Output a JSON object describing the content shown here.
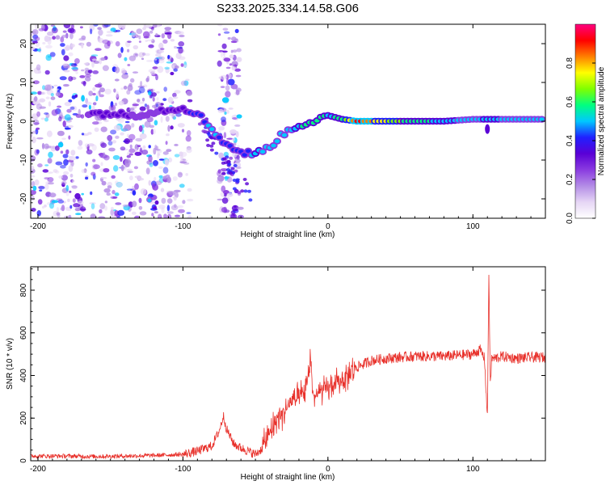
{
  "title": "S233.2025.334.14.58.G06",
  "chart_data": [
    {
      "type": "heatmap",
      "title": "S233.2025.334.14.58.G06",
      "xlabel": "Height of straight line (km)",
      "ylabel": "Frequency (Hz)",
      "xlim": [
        -205,
        150
      ],
      "ylim": [
        -25,
        25
      ],
      "xticks": [
        -200,
        -100,
        0,
        100
      ],
      "yticks": [
        -20,
        -10,
        0,
        10,
        20
      ],
      "colorbar": {
        "label": "Normalized spectral amplitude",
        "range": [
          0,
          1
        ],
        "ticks": [
          0.0,
          0.2,
          0.4,
          0.6,
          0.8
        ],
        "tick_labels": [
          "0.0",
          "0.2",
          "0.4",
          "0.6",
          "0.8"
        ],
        "colormap": [
          "#ffffff",
          "#e6d6f5",
          "#b38ce6",
          "#8a3be0",
          "#5a00d6",
          "#2020ff",
          "#00c8ff",
          "#00ff80",
          "#80ff00",
          "#ffff00",
          "#ff8000",
          "#ff0000",
          "#ff0080"
        ]
      },
      "ridge": [
        {
          "x": -165,
          "y": 2.0,
          "a": 0.3
        },
        {
          "x": -150,
          "y": 2.0,
          "a": 0.35
        },
        {
          "x": -135,
          "y": 1.5,
          "a": 0.3
        },
        {
          "x": -120,
          "y": 2.5,
          "a": 0.3
        },
        {
          "x": -100,
          "y": 3.5,
          "a": 0.35
        },
        {
          "x": -90,
          "y": 2.0,
          "a": 0.45
        },
        {
          "x": -80,
          "y": -2.0,
          "a": 0.5
        },
        {
          "x": -70,
          "y": -6.0,
          "a": 0.45
        },
        {
          "x": -60,
          "y": -8.0,
          "a": 0.4
        },
        {
          "x": -50,
          "y": -8.5,
          "a": 0.55
        },
        {
          "x": -40,
          "y": -6.5,
          "a": 0.5
        },
        {
          "x": -30,
          "y": -3.0,
          "a": 0.5
        },
        {
          "x": -20,
          "y": -1.0,
          "a": 0.55
        },
        {
          "x": -10,
          "y": 0.0,
          "a": 0.65
        },
        {
          "x": 0,
          "y": 1.5,
          "a": 0.55
        },
        {
          "x": 10,
          "y": 0.5,
          "a": 0.6
        },
        {
          "x": 20,
          "y": 0.0,
          "a": 0.95
        },
        {
          "x": 40,
          "y": 0.0,
          "a": 0.75
        },
        {
          "x": 60,
          "y": 0.0,
          "a": 0.6
        },
        {
          "x": 80,
          "y": 0.0,
          "a": 0.55
        },
        {
          "x": 100,
          "y": 0.5,
          "a": 0.5
        },
        {
          "x": 110,
          "y": 0.5,
          "a": 0.55
        },
        {
          "x": 130,
          "y": 0.5,
          "a": 0.5
        },
        {
          "x": 150,
          "y": 0.5,
          "a": 0.5
        }
      ]
    },
    {
      "type": "line",
      "xlabel": "Height of straight line (km)",
      "ylabel": "SNR (10 * v/v)",
      "xlim": [
        -205,
        150
      ],
      "ylim": [
        0,
        910
      ],
      "xticks": [
        -200,
        -100,
        0,
        100
      ],
      "yticks": [
        0,
        200,
        400,
        600,
        800
      ],
      "color": "#e8302a",
      "series": [
        {
          "name": "SNR",
          "x": [
            -205,
            -180,
            -160,
            -140,
            -120,
            -100,
            -90,
            -80,
            -75,
            -72,
            -70,
            -65,
            -60,
            -50,
            -45,
            -40,
            -35,
            -30,
            -25,
            -20,
            -15,
            -12,
            -10,
            -5,
            0,
            5,
            10,
            15,
            20,
            30,
            40,
            50,
            60,
            70,
            80,
            90,
            100,
            105,
            108,
            110,
            111,
            112,
            113,
            115,
            120,
            130,
            140,
            150
          ],
          "y": [
            22,
            22,
            20,
            22,
            25,
            30,
            45,
            70,
            140,
            210,
            150,
            80,
            60,
            30,
            60,
            130,
            200,
            230,
            280,
            290,
            330,
            480,
            300,
            320,
            340,
            360,
            380,
            410,
            440,
            470,
            480,
            485,
            490,
            490,
            490,
            495,
            500,
            520,
            480,
            200,
            880,
            350,
            480,
            480,
            490,
            480,
            485,
            485
          ]
        }
      ]
    }
  ]
}
